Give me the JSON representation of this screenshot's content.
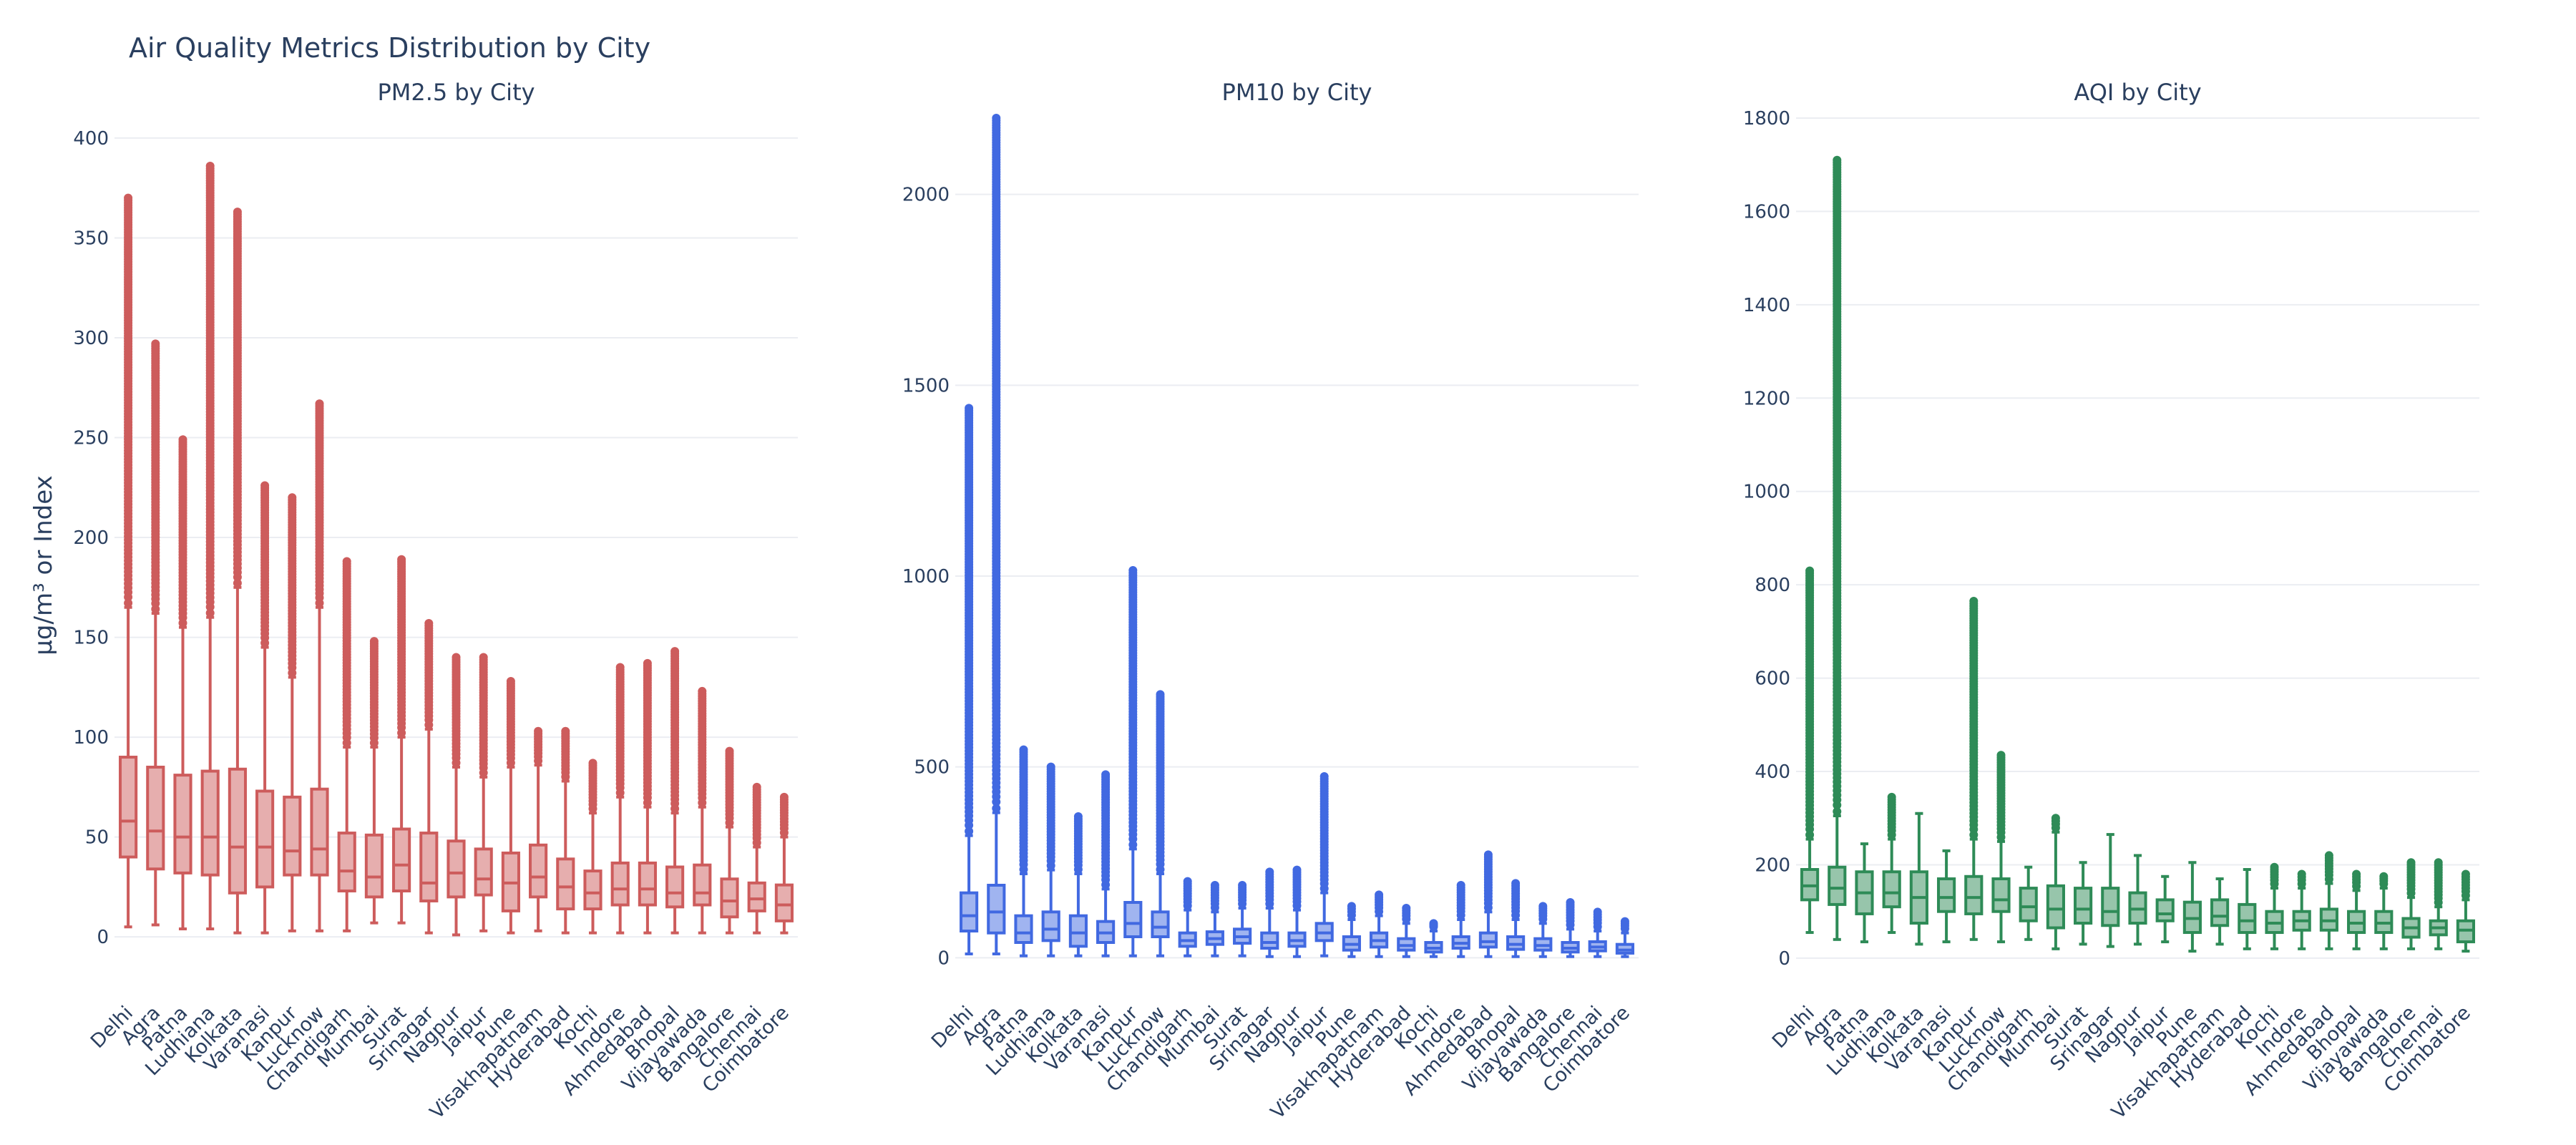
{
  "figure": {
    "title": "Air Quality Metrics Distribution by City",
    "ylabel": "µg/m³ or Index"
  },
  "colors": {
    "text": "#2a3f5f",
    "grid": "#ebedf2",
    "pm25": "#cd5c5c",
    "pm10": "#4169e1",
    "aqi": "#2e8b57"
  },
  "chart_data": [
    {
      "type": "box",
      "title": "PM2.5 by City",
      "ylim": [
        -20,
        410
      ],
      "yticks": [
        0,
        50,
        100,
        150,
        200,
        250,
        300,
        350,
        400
      ],
      "color_key": "pm25",
      "categories": [
        "Delhi",
        "Agra",
        "Patna",
        "Ludhiana",
        "Kolkata",
        "Varanasi",
        "Kanpur",
        "Lucknow",
        "Chandigarh",
        "Mumbai",
        "Surat",
        "Srinagar",
        "Nagpur",
        "Jaipur",
        "Pune",
        "Visakhapatnam",
        "Hyderabad",
        "Kochi",
        "Indore",
        "Ahmedabad",
        "Bhopal",
        "Vijayawada",
        "Bangalore",
        "Chennai",
        "Coimbatore"
      ],
      "boxes": [
        {
          "min": 5,
          "q1": 40,
          "median": 58,
          "q3": 90,
          "whisker_high": 165,
          "outlier_max": 370
        },
        {
          "min": 6,
          "q1": 34,
          "median": 53,
          "q3": 85,
          "whisker_high": 162,
          "outlier_max": 297
        },
        {
          "min": 4,
          "q1": 32,
          "median": 50,
          "q3": 81,
          "whisker_high": 155,
          "outlier_max": 249
        },
        {
          "min": 4,
          "q1": 31,
          "median": 50,
          "q3": 83,
          "whisker_high": 160,
          "outlier_max": 386
        },
        {
          "min": 2,
          "q1": 22,
          "median": 45,
          "q3": 84,
          "whisker_high": 175,
          "outlier_max": 363
        },
        {
          "min": 2,
          "q1": 25,
          "median": 45,
          "q3": 73,
          "whisker_high": 145,
          "outlier_max": 226
        },
        {
          "min": 3,
          "q1": 31,
          "median": 43,
          "q3": 70,
          "whisker_high": 130,
          "outlier_max": 220
        },
        {
          "min": 3,
          "q1": 31,
          "median": 44,
          "q3": 74,
          "whisker_high": 165,
          "outlier_max": 267
        },
        {
          "min": 3,
          "q1": 23,
          "median": 33,
          "q3": 52,
          "whisker_high": 95,
          "outlier_max": 188
        },
        {
          "min": 7,
          "q1": 20,
          "median": 30,
          "q3": 51,
          "whisker_high": 95,
          "outlier_max": 148
        },
        {
          "min": 7,
          "q1": 23,
          "median": 36,
          "q3": 54,
          "whisker_high": 100,
          "outlier_max": 189
        },
        {
          "min": 2,
          "q1": 18,
          "median": 27,
          "q3": 52,
          "whisker_high": 104,
          "outlier_max": 157
        },
        {
          "min": 1,
          "q1": 20,
          "median": 32,
          "q3": 48,
          "whisker_high": 85,
          "outlier_max": 140
        },
        {
          "min": 3,
          "q1": 21,
          "median": 29,
          "q3": 44,
          "whisker_high": 80,
          "outlier_max": 140
        },
        {
          "min": 2,
          "q1": 13,
          "median": 27,
          "q3": 42,
          "whisker_high": 85,
          "outlier_max": 128
        },
        {
          "min": 3,
          "q1": 20,
          "median": 30,
          "q3": 46,
          "whisker_high": 86,
          "outlier_max": 103
        },
        {
          "min": 2,
          "q1": 14,
          "median": 25,
          "q3": 39,
          "whisker_high": 78,
          "outlier_max": 103
        },
        {
          "min": 2,
          "q1": 14,
          "median": 22,
          "q3": 33,
          "whisker_high": 62,
          "outlier_max": 87
        },
        {
          "min": 2,
          "q1": 16,
          "median": 24,
          "q3": 37,
          "whisker_high": 70,
          "outlier_max": 135
        },
        {
          "min": 2,
          "q1": 16,
          "median": 24,
          "q3": 37,
          "whisker_high": 65,
          "outlier_max": 137
        },
        {
          "min": 2,
          "q1": 15,
          "median": 22,
          "q3": 35,
          "whisker_high": 62,
          "outlier_max": 143
        },
        {
          "min": 2,
          "q1": 16,
          "median": 22,
          "q3": 36,
          "whisker_high": 65,
          "outlier_max": 123
        },
        {
          "min": 2,
          "q1": 10,
          "median": 18,
          "q3": 29,
          "whisker_high": 55,
          "outlier_max": 93
        },
        {
          "min": 2,
          "q1": 13,
          "median": 19,
          "q3": 27,
          "whisker_high": 45,
          "outlier_max": 75
        },
        {
          "min": 2,
          "q1": 8,
          "median": 16,
          "q3": 26,
          "whisker_high": 50,
          "outlier_max": 70
        }
      ]
    },
    {
      "type": "box",
      "title": "PM10 by City",
      "ylim": [
        -50,
        2200
      ],
      "yticks": [
        0,
        500,
        1000,
        1500,
        2000
      ],
      "color_key": "pm10",
      "categories": [
        "Delhi",
        "Agra",
        "Patna",
        "Ludhiana",
        "Kolkata",
        "Varanasi",
        "Kanpur",
        "Lucknow",
        "Chandigarh",
        "Mumbai",
        "Surat",
        "Srinagar",
        "Nagpur",
        "Jaipur",
        "Pune",
        "Visakhapatnam",
        "Hyderabad",
        "Kochi",
        "Indore",
        "Ahmedabad",
        "Bhopal",
        "Vijayawada",
        "Bangalore",
        "Chennai",
        "Coimbatore"
      ],
      "boxes": [
        {
          "min": 10,
          "q1": 70,
          "median": 110,
          "q3": 170,
          "whisker_high": 320,
          "outlier_max": 1440
        },
        {
          "min": 10,
          "q1": 65,
          "median": 120,
          "q3": 190,
          "whisker_high": 380,
          "outlier_max": 2200
        },
        {
          "min": 5,
          "q1": 40,
          "median": 65,
          "q3": 110,
          "whisker_high": 220,
          "outlier_max": 545
        },
        {
          "min": 5,
          "q1": 45,
          "median": 75,
          "q3": 120,
          "whisker_high": 230,
          "outlier_max": 500
        },
        {
          "min": 5,
          "q1": 30,
          "median": 65,
          "q3": 110,
          "whisker_high": 220,
          "outlier_max": 370
        },
        {
          "min": 5,
          "q1": 40,
          "median": 65,
          "q3": 95,
          "whisker_high": 180,
          "outlier_max": 480
        },
        {
          "min": 5,
          "q1": 55,
          "median": 90,
          "q3": 145,
          "whisker_high": 285,
          "outlier_max": 1015
        },
        {
          "min": 5,
          "q1": 55,
          "median": 80,
          "q3": 120,
          "whisker_high": 220,
          "outlier_max": 690
        },
        {
          "min": 5,
          "q1": 30,
          "median": 45,
          "q3": 65,
          "whisker_high": 125,
          "outlier_max": 200
        },
        {
          "min": 5,
          "q1": 35,
          "median": 50,
          "q3": 68,
          "whisker_high": 120,
          "outlier_max": 190
        },
        {
          "min": 5,
          "q1": 38,
          "median": 55,
          "q3": 75,
          "whisker_high": 130,
          "outlier_max": 190
        },
        {
          "min": 3,
          "q1": 25,
          "median": 40,
          "q3": 65,
          "whisker_high": 130,
          "outlier_max": 225
        },
        {
          "min": 3,
          "q1": 30,
          "median": 45,
          "q3": 65,
          "whisker_high": 125,
          "outlier_max": 230
        },
        {
          "min": 5,
          "q1": 45,
          "median": 65,
          "q3": 90,
          "whisker_high": 170,
          "outlier_max": 475
        },
        {
          "min": 3,
          "q1": 20,
          "median": 35,
          "q3": 55,
          "whisker_high": 100,
          "outlier_max": 135
        },
        {
          "min": 3,
          "q1": 28,
          "median": 45,
          "q3": 65,
          "whisker_high": 110,
          "outlier_max": 165
        },
        {
          "min": 3,
          "q1": 20,
          "median": 32,
          "q3": 50,
          "whisker_high": 90,
          "outlier_max": 130
        },
        {
          "min": 3,
          "q1": 15,
          "median": 25,
          "q3": 40,
          "whisker_high": 70,
          "outlier_max": 90
        },
        {
          "min": 3,
          "q1": 25,
          "median": 38,
          "q3": 55,
          "whisker_high": 100,
          "outlier_max": 190
        },
        {
          "min": 3,
          "q1": 28,
          "median": 42,
          "q3": 65,
          "whisker_high": 120,
          "outlier_max": 270
        },
        {
          "min": 3,
          "q1": 22,
          "median": 35,
          "q3": 55,
          "whisker_high": 100,
          "outlier_max": 195
        },
        {
          "min": 3,
          "q1": 20,
          "median": 32,
          "q3": 50,
          "whisker_high": 90,
          "outlier_max": 135
        },
        {
          "min": 3,
          "q1": 15,
          "median": 25,
          "q3": 40,
          "whisker_high": 75,
          "outlier_max": 145
        },
        {
          "min": 3,
          "q1": 18,
          "median": 28,
          "q3": 42,
          "whisker_high": 70,
          "outlier_max": 120
        },
        {
          "min": 3,
          "q1": 12,
          "median": 20,
          "q3": 35,
          "whisker_high": 65,
          "outlier_max": 95
        }
      ]
    },
    {
      "type": "box",
      "title": "AQI by City",
      "ylim": [
        -40,
        1800
      ],
      "yticks": [
        0,
        200,
        400,
        600,
        800,
        1000,
        1200,
        1400,
        1600,
        1800
      ],
      "color_key": "aqi",
      "categories": [
        "Delhi",
        "Agra",
        "Patna",
        "Ludhiana",
        "Kolkata",
        "Varanasi",
        "Kanpur",
        "Lucknow",
        "Chandigarh",
        "Mumbai",
        "Surat",
        "Srinagar",
        "Nagpur",
        "Jaipur",
        "Pune",
        "Visakhapatnam",
        "Hyderabad",
        "Kochi",
        "Indore",
        "Ahmedabad",
        "Bhopal",
        "Vijayawada",
        "Bangalore",
        "Chennai",
        "Coimbatore"
      ],
      "boxes": [
        {
          "min": 55,
          "q1": 125,
          "median": 155,
          "q3": 190,
          "whisker_high": 255,
          "outlier_max": 830
        },
        {
          "min": 40,
          "q1": 115,
          "median": 150,
          "q3": 195,
          "whisker_high": 305,
          "outlier_max": 1710
        },
        {
          "min": 35,
          "q1": 95,
          "median": 140,
          "q3": 185,
          "whisker_high": 245,
          "outlier_max": 245
        },
        {
          "min": 55,
          "q1": 110,
          "median": 140,
          "q3": 185,
          "whisker_high": 255,
          "outlier_max": 345
        },
        {
          "min": 30,
          "q1": 75,
          "median": 130,
          "q3": 185,
          "whisker_high": 310,
          "outlier_max": 310
        },
        {
          "min": 35,
          "q1": 100,
          "median": 130,
          "q3": 170,
          "whisker_high": 230,
          "outlier_max": 230
        },
        {
          "min": 40,
          "q1": 95,
          "median": 130,
          "q3": 175,
          "whisker_high": 255,
          "outlier_max": 765
        },
        {
          "min": 35,
          "q1": 100,
          "median": 125,
          "q3": 170,
          "whisker_high": 250,
          "outlier_max": 435
        },
        {
          "min": 40,
          "q1": 80,
          "median": 110,
          "q3": 150,
          "whisker_high": 195,
          "outlier_max": 195
        },
        {
          "min": 20,
          "q1": 65,
          "median": 105,
          "q3": 155,
          "whisker_high": 270,
          "outlier_max": 300
        },
        {
          "min": 30,
          "q1": 75,
          "median": 105,
          "q3": 150,
          "whisker_high": 205,
          "outlier_max": 205
        },
        {
          "min": 25,
          "q1": 70,
          "median": 100,
          "q3": 150,
          "whisker_high": 265,
          "outlier_max": 265
        },
        {
          "min": 30,
          "q1": 75,
          "median": 105,
          "q3": 140,
          "whisker_high": 220,
          "outlier_max": 220
        },
        {
          "min": 35,
          "q1": 80,
          "median": 95,
          "q3": 125,
          "whisker_high": 175,
          "outlier_max": 175
        },
        {
          "min": 15,
          "q1": 55,
          "median": 85,
          "q3": 120,
          "whisker_high": 205,
          "outlier_max": 205
        },
        {
          "min": 30,
          "q1": 70,
          "median": 90,
          "q3": 125,
          "whisker_high": 170,
          "outlier_max": 170
        },
        {
          "min": 20,
          "q1": 55,
          "median": 80,
          "q3": 115,
          "whisker_high": 190,
          "outlier_max": 190
        },
        {
          "min": 20,
          "q1": 55,
          "median": 75,
          "q3": 100,
          "whisker_high": 150,
          "outlier_max": 195
        },
        {
          "min": 20,
          "q1": 60,
          "median": 80,
          "q3": 100,
          "whisker_high": 150,
          "outlier_max": 180
        },
        {
          "min": 20,
          "q1": 60,
          "median": 80,
          "q3": 105,
          "whisker_high": 160,
          "outlier_max": 220
        },
        {
          "min": 20,
          "q1": 55,
          "median": 75,
          "q3": 100,
          "whisker_high": 145,
          "outlier_max": 180
        },
        {
          "min": 20,
          "q1": 55,
          "median": 75,
          "q3": 100,
          "whisker_high": 150,
          "outlier_max": 175
        },
        {
          "min": 20,
          "q1": 45,
          "median": 65,
          "q3": 85,
          "whisker_high": 130,
          "outlier_max": 205
        },
        {
          "min": 20,
          "q1": 50,
          "median": 65,
          "q3": 80,
          "whisker_high": 110,
          "outlier_max": 205
        },
        {
          "min": 15,
          "q1": 35,
          "median": 60,
          "q3": 80,
          "whisker_high": 125,
          "outlier_max": 180
        }
      ]
    }
  ]
}
